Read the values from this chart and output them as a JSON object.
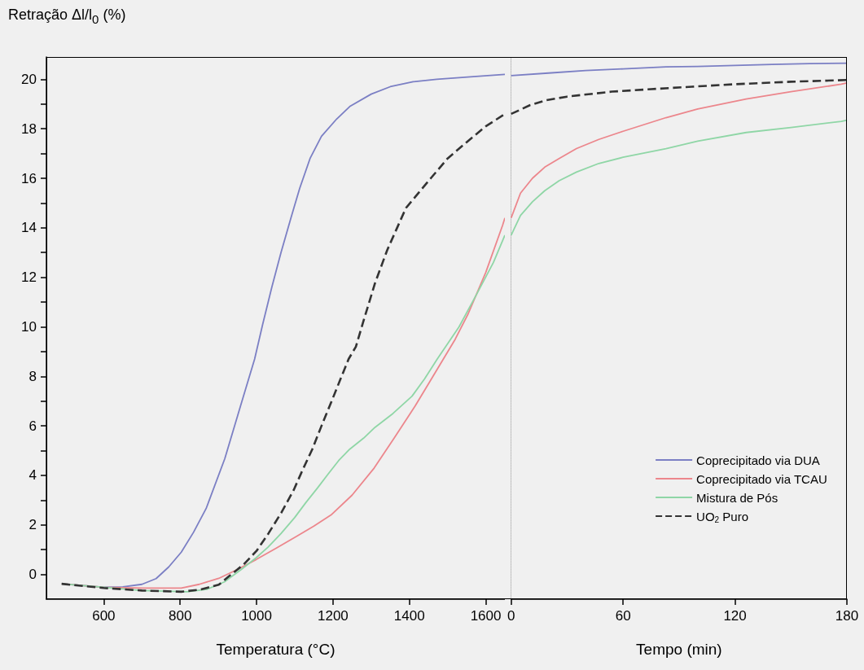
{
  "chart_data": [
    {
      "type": "line",
      "ylabel": "Retração Δl/l$_{0}$ (%)",
      "xlabel": "Temperatura (°C)",
      "xlim": [
        450,
        1650
      ],
      "xticks": [
        600,
        800,
        1000,
        1200,
        1400,
        1600
      ],
      "ylim": [
        -1,
        20.9
      ],
      "yticks": [
        0,
        {
          "value": 1,
          "label": null
        },
        2,
        {
          "value": 3,
          "label": null
        },
        4,
        {
          "value": 5,
          "label": null
        },
        6,
        {
          "value": 7,
          "label": null
        },
        8,
        {
          "value": 9,
          "label": null
        },
        10,
        {
          "value": 11,
          "label": null
        },
        12,
        {
          "value": 13,
          "label": null
        },
        14,
        {
          "value": 15,
          "label": null
        },
        16,
        {
          "value": 17,
          "label": null
        },
        18,
        {
          "value": 19,
          "label": null
        },
        20
      ],
      "grid": false,
      "marker": "none",
      "series": [
        {
          "color": "#7b7fc4",
          "line_style": "solid",
          "x": [
            490,
            600,
            650,
            700,
            737,
            770,
            803,
            835,
            868,
            917,
            958,
            995,
            1016,
            1040,
            1064,
            1090,
            1113,
            1140,
            1170,
            1210,
            1244,
            1300,
            1350,
            1410,
            1472,
            1560,
            1650
          ],
          "values": [
            -0.38,
            -0.52,
            -0.5,
            -0.4,
            -0.17,
            0.3,
            0.9,
            1.7,
            2.66,
            4.68,
            6.8,
            8.7,
            10.1,
            11.6,
            13.0,
            14.4,
            15.6,
            16.8,
            17.7,
            18.4,
            18.9,
            19.4,
            19.7,
            19.9,
            20.0,
            20.1,
            20.2
          ]
        },
        {
          "color": "#ec868c",
          "line_style": "solid",
          "x": [
            490,
            600,
            700,
            803,
            850,
            901,
            950,
            999,
            1050,
            1105,
            1150,
            1195,
            1250,
            1308,
            1360,
            1415,
            1450,
            1489,
            1520,
            1553,
            1600,
            1644,
            1650
          ],
          "values": [
            -0.38,
            -0.52,
            -0.55,
            -0.55,
            -0.4,
            -0.16,
            0.2,
            0.6,
            1.05,
            1.54,
            1.95,
            2.4,
            3.2,
            4.3,
            5.5,
            6.8,
            7.7,
            8.7,
            9.5,
            10.5,
            12.2,
            14.1,
            14.4
          ]
        },
        {
          "color": "#8fd6a6",
          "line_style": "solid",
          "x": [
            490,
            600,
            700,
            818,
            870,
            916,
            960,
            998,
            1030,
            1064,
            1100,
            1129,
            1160,
            1187,
            1215,
            1244,
            1280,
            1310,
            1357,
            1407,
            1440,
            1473,
            1530,
            1579,
            1620,
            1650
          ],
          "values": [
            -0.38,
            -0.52,
            -0.65,
            -0.7,
            -0.6,
            -0.3,
            0.2,
            0.66,
            1.1,
            1.65,
            2.3,
            2.9,
            3.5,
            4.05,
            4.6,
            5.06,
            5.5,
            5.94,
            6.5,
            7.2,
            7.9,
            8.7,
            10.0,
            11.4,
            12.6,
            13.7
          ]
        },
        {
          "color": "#333333",
          "line_style": "dashed",
          "x": [
            490,
            600,
            700,
            803,
            850,
            901,
            930,
            966,
            1000,
            1031,
            1065,
            1097,
            1120,
            1146,
            1170,
            1195,
            1220,
            1241,
            1260,
            1285,
            1310,
            1342,
            1391,
            1456,
            1500,
            1553,
            1600,
            1650
          ],
          "values": [
            -0.38,
            -0.55,
            -0.65,
            -0.7,
            -0.62,
            -0.42,
            -0.05,
            0.4,
            0.95,
            1.65,
            2.5,
            3.4,
            4.2,
            5.06,
            6.0,
            6.94,
            7.9,
            8.7,
            9.2,
            10.5,
            11.76,
            13.1,
            14.8,
            16.0,
            16.8,
            17.5,
            18.1,
            18.6
          ]
        }
      ]
    },
    {
      "type": "line",
      "xlabel": "Tempo (min)",
      "xlim": [
        0,
        180
      ],
      "xticks": [
        0,
        60,
        120,
        180
      ],
      "ylim": [
        -1,
        20.9
      ],
      "tick_labels": "x",
      "grid": false,
      "marker": "none",
      "legend": "bottom right",
      "series": [
        {
          "name": "Coprecipitado via DUA",
          "color": "#7b7fc4",
          "line_style": "solid",
          "x": [
            0,
            20,
            40,
            60,
            83,
            100,
            120,
            140,
            160,
            180
          ],
          "values": [
            20.15,
            20.25,
            20.35,
            20.42,
            20.5,
            20.52,
            20.56,
            20.6,
            20.63,
            20.65
          ]
        },
        {
          "name": "Coprecipitado via TCAU",
          "color": "#ec868c",
          "line_style": "solid",
          "x": [
            0,
            5,
            11.4,
            18,
            25.7,
            35,
            47,
            60,
            83,
            100,
            126,
            150,
            177,
            180
          ],
          "values": [
            14.4,
            15.4,
            16.0,
            16.45,
            16.8,
            17.2,
            17.57,
            17.9,
            18.45,
            18.8,
            19.2,
            19.5,
            19.8,
            19.85
          ]
        },
        {
          "name": "Mistura de Pós",
          "color": "#8fd6a6",
          "line_style": "solid",
          "x": [
            0,
            5,
            11.4,
            18,
            25.7,
            35,
            47,
            60,
            83,
            100,
            126,
            150,
            177,
            180
          ],
          "values": [
            13.7,
            14.5,
            15.05,
            15.5,
            15.9,
            16.25,
            16.6,
            16.85,
            17.2,
            17.5,
            17.85,
            18.05,
            18.3,
            18.35
          ]
        },
        {
          "name": "UO$_{2}$ Puro",
          "color": "#333333",
          "line_style": "dashed",
          "x": [
            0,
            10,
            18.6,
            30,
            54,
            75,
            97,
            120,
            150,
            180
          ],
          "values": [
            18.6,
            18.95,
            19.15,
            19.3,
            19.5,
            19.6,
            19.7,
            19.8,
            19.9,
            19.97
          ]
        }
      ]
    }
  ]
}
